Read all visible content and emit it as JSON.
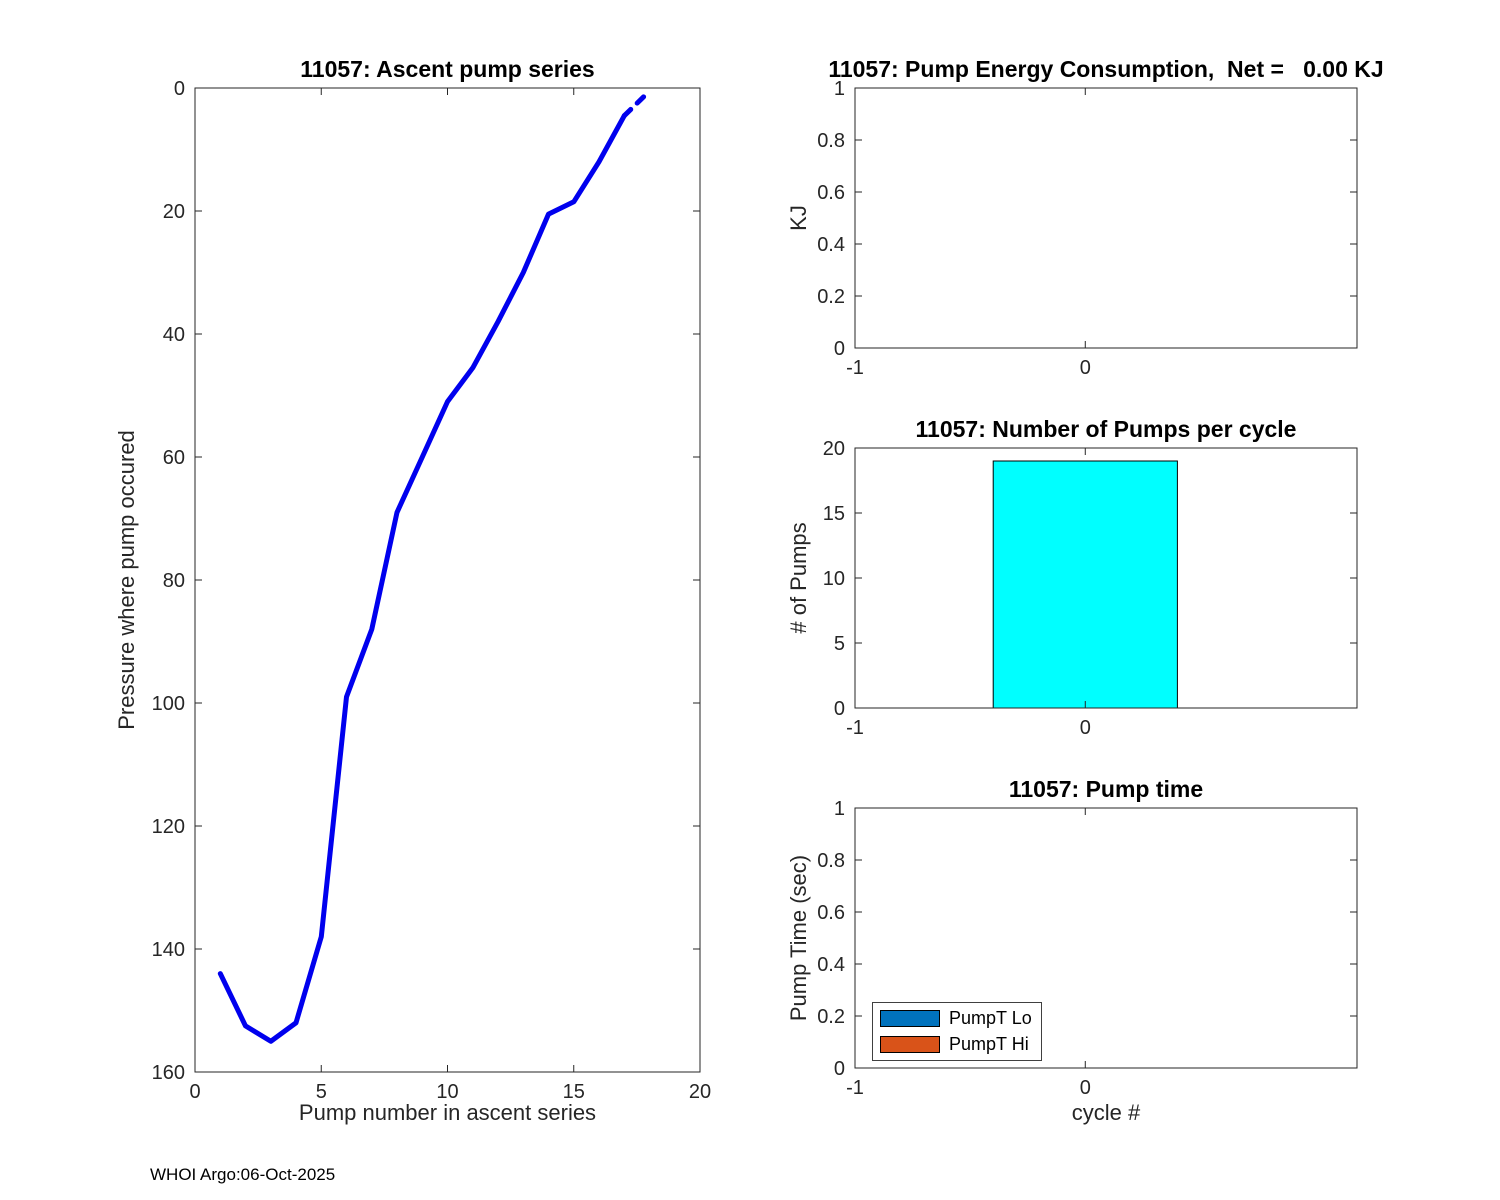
{
  "figure": {
    "footer": "WHOI Argo:06-Oct-2025",
    "background_color": "#ffffff",
    "axis_color": "#262626"
  },
  "chart_data": [
    {
      "id": "ascent",
      "type": "line",
      "title": "11057: Ascent pump series",
      "xlabel": "Pump number in ascent series",
      "ylabel": "Pressure where pump occured",
      "xlim": [
        0,
        20
      ],
      "ylim": [
        0,
        160
      ],
      "y_reversed": true,
      "grid": false,
      "xticks": [
        0,
        5,
        10,
        15,
        20
      ],
      "xtick_labels": [
        "0",
        "5",
        "10",
        "15",
        "20"
      ],
      "yticks": [
        0,
        20,
        40,
        60,
        80,
        100,
        120,
        140,
        160
      ],
      "ytick_labels": [
        "0",
        "20",
        "40",
        "60",
        "80",
        "100",
        "120",
        "140",
        "160"
      ],
      "line_color": "#0000ee",
      "line_width": 5,
      "x": [
        1,
        2,
        3,
        4,
        5,
        6,
        7,
        8,
        9,
        10,
        11,
        12,
        13,
        14,
        15,
        16,
        17,
        18
      ],
      "y": [
        144,
        152.5,
        155,
        152,
        138,
        99,
        88,
        69,
        60,
        51,
        45.5,
        38,
        30,
        20.5,
        18.5,
        12,
        4.5,
        0.5
      ],
      "dash_from_index": 16
    },
    {
      "id": "energy",
      "type": "bar",
      "title": "11057: Pump Energy Consumption,  Net =   0.00 KJ",
      "net_kj": 0.0,
      "xlabel": "",
      "ylabel": "KJ",
      "xlim": [
        -1,
        1.18
      ],
      "ylim": [
        0,
        1
      ],
      "grid": false,
      "xticks": [
        -1,
        0
      ],
      "xtick_labels": [
        "-1",
        "0"
      ],
      "yticks": [
        0,
        0.2,
        0.4,
        0.6,
        0.8,
        1
      ],
      "ytick_labels": [
        "0",
        "0.2",
        "0.4",
        "0.6",
        "0.8",
        "1"
      ],
      "bars": {
        "x": [],
        "values": [],
        "half_width": 0.4,
        "color": "#00ffff"
      }
    },
    {
      "id": "pumps",
      "type": "bar",
      "title": "11057: Number of Pumps per cycle",
      "xlabel": "",
      "ylabel": "# of Pumps",
      "xlim": [
        -1,
        1.18
      ],
      "ylim": [
        0,
        20
      ],
      "grid": false,
      "xticks": [
        -1,
        0
      ],
      "xtick_labels": [
        "-1",
        "0"
      ],
      "yticks": [
        0,
        5,
        10,
        15,
        20
      ],
      "ytick_labels": [
        "0",
        "5",
        "10",
        "15",
        "20"
      ],
      "bars": {
        "x": [
          0
        ],
        "values": [
          19
        ],
        "half_width": 0.4,
        "color": "#00ffff"
      }
    },
    {
      "id": "time",
      "type": "bar",
      "title": "11057: Pump time",
      "xlabel": "cycle #",
      "ylabel": "Pump Time (sec)",
      "xlim": [
        -1,
        1.18
      ],
      "ylim": [
        0,
        1
      ],
      "grid": false,
      "xticks": [
        -1,
        0
      ],
      "xtick_labels": [
        "-1",
        "0"
      ],
      "yticks": [
        0,
        0.2,
        0.4,
        0.6,
        0.8,
        1
      ],
      "ytick_labels": [
        "0",
        "0.2",
        "0.4",
        "0.6",
        "0.8",
        "1"
      ],
      "bars": {
        "x": [],
        "values": [],
        "half_width": 0.4,
        "color": "#00ffff"
      },
      "legend": [
        {
          "label": "PumpT Lo",
          "color": "#0072BD"
        },
        {
          "label": "PumpT Hi",
          "color": "#D95319"
        }
      ],
      "legend_position": "bottom-left"
    }
  ]
}
